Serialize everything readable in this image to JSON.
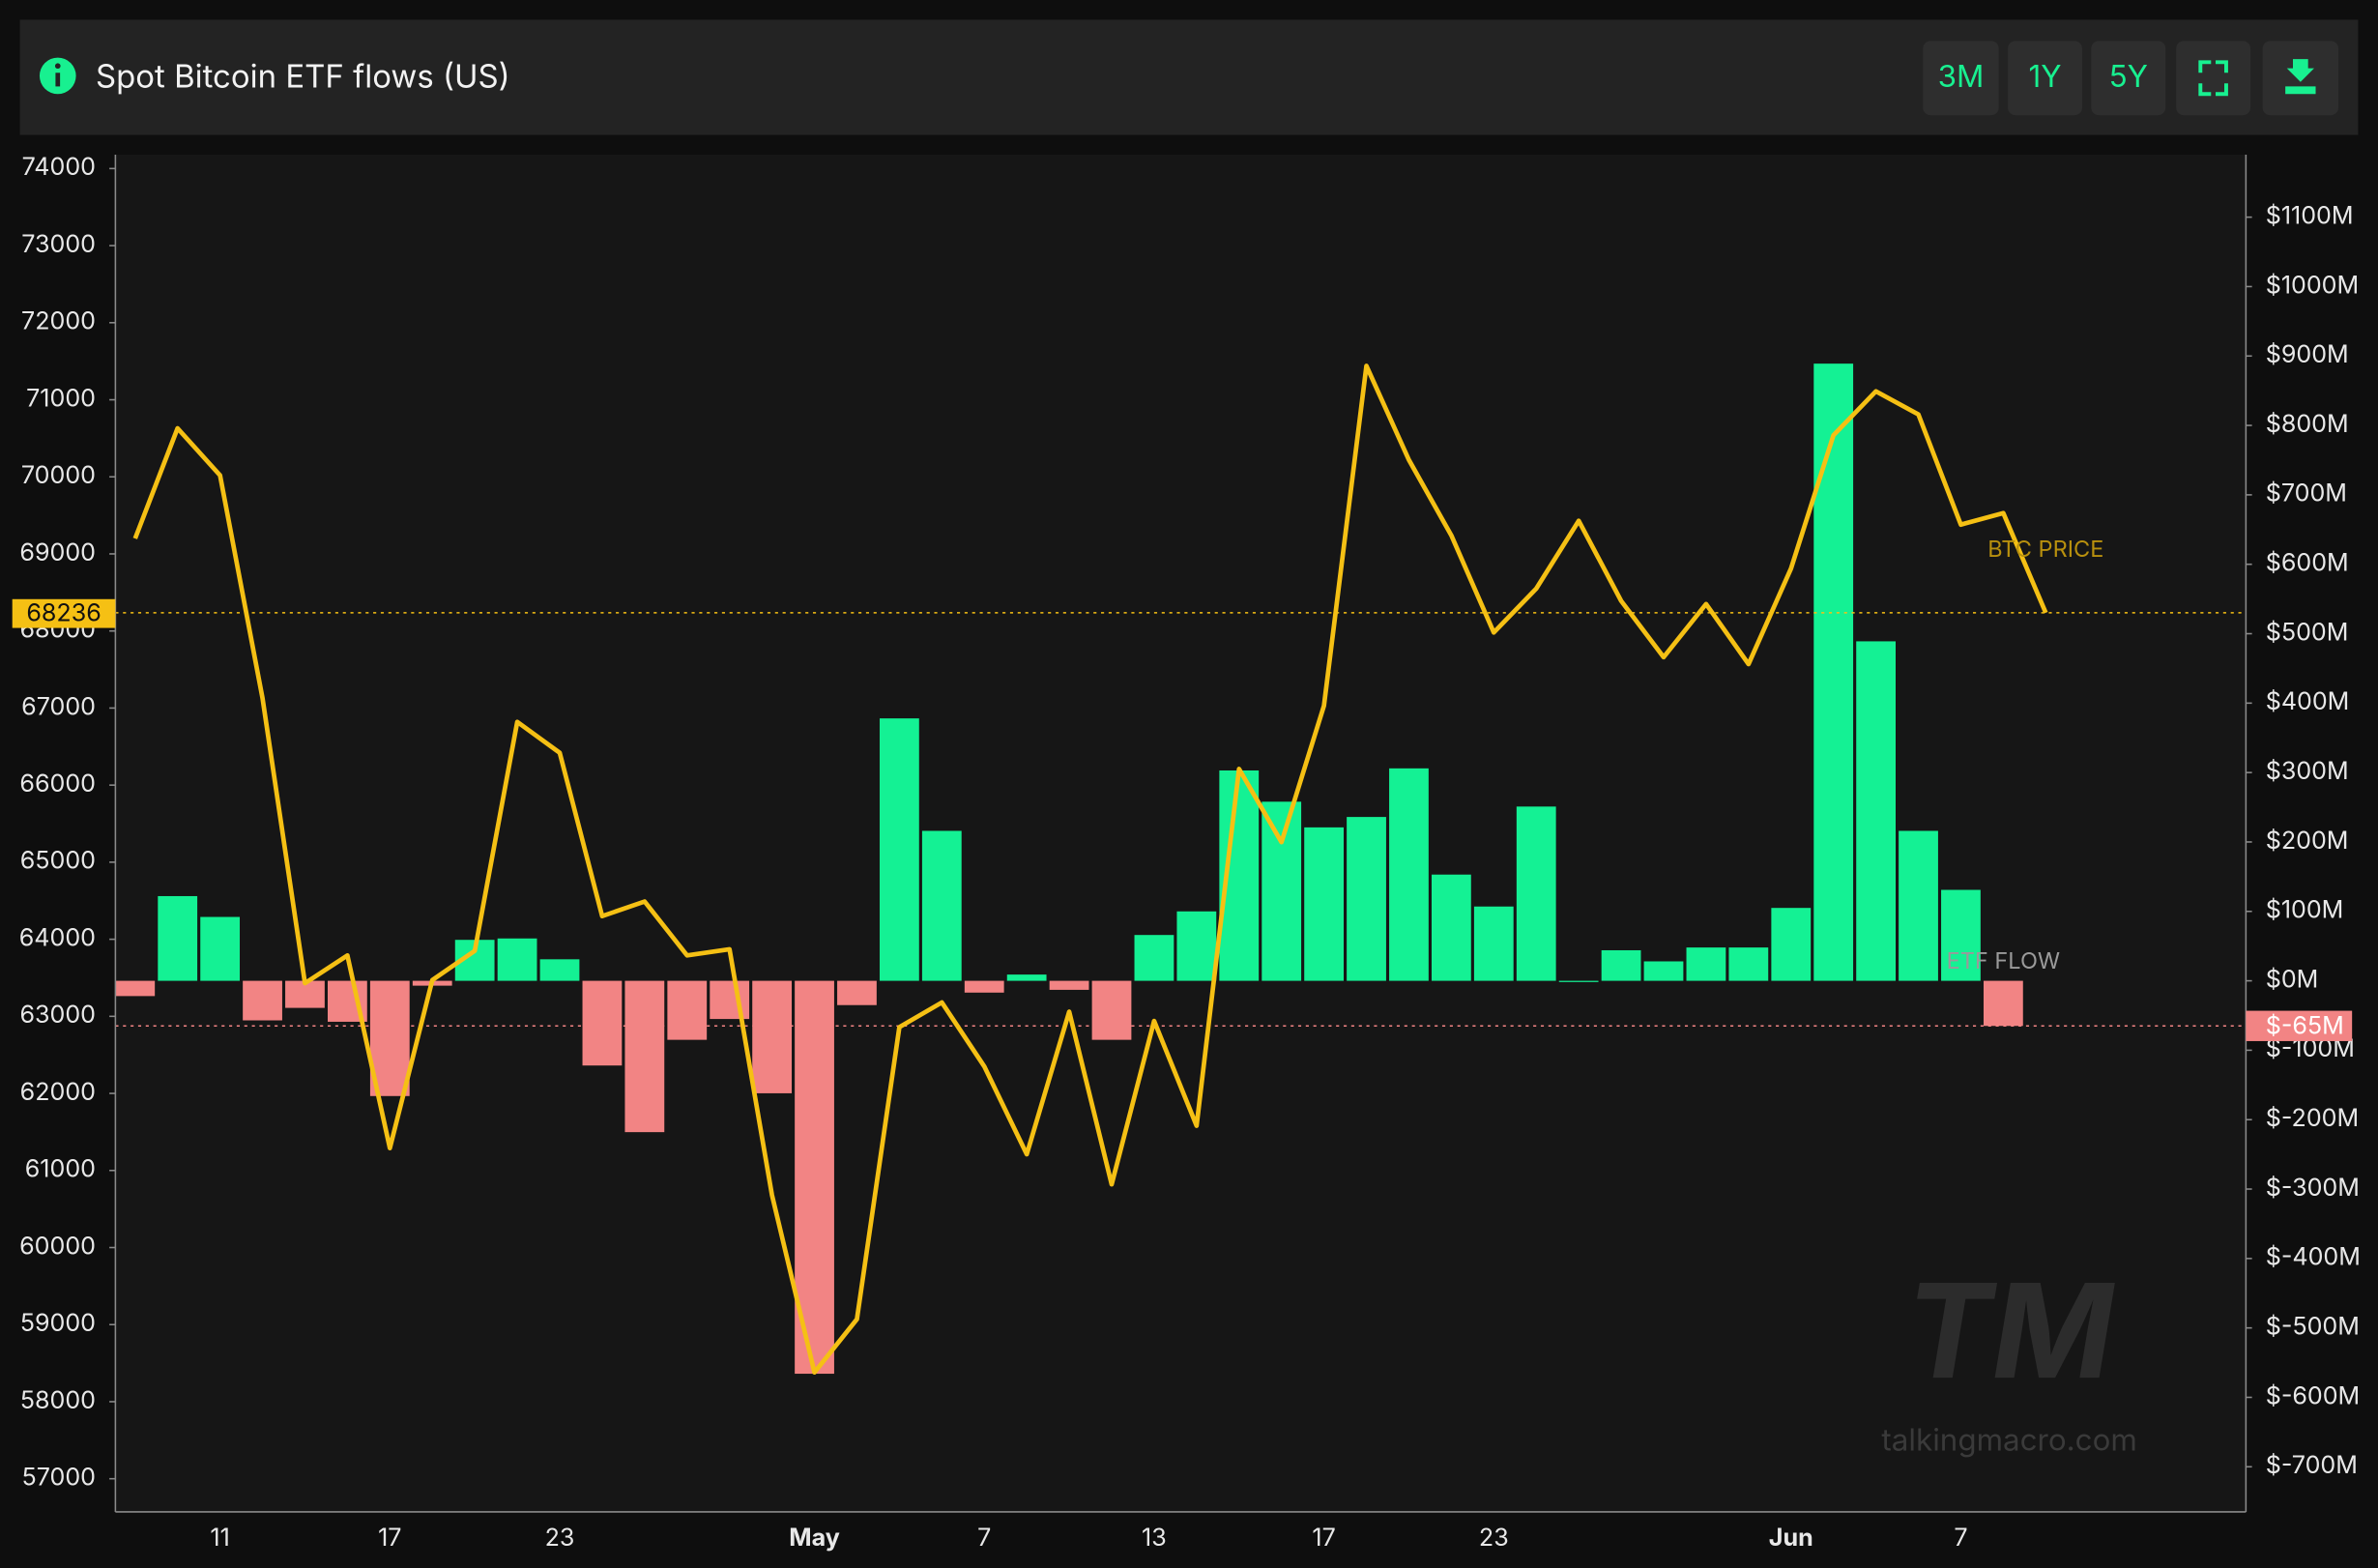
{
  "header": {
    "title": "Spot Bitcoin ETF flows (US)",
    "buttons": [
      "3M",
      "1Y",
      "5Y"
    ]
  },
  "watermark": {
    "logo": "TM",
    "site": "talkingmacro.com"
  },
  "chart_data": {
    "type": "combo",
    "categories": [
      null,
      null,
      "11",
      null,
      null,
      null,
      "17",
      null,
      null,
      null,
      "23",
      null,
      null,
      null,
      null,
      null,
      "May",
      null,
      null,
      null,
      "7",
      null,
      null,
      null,
      "13",
      null,
      null,
      null,
      "17",
      null,
      null,
      null,
      "23",
      null,
      null,
      null,
      null,
      null,
      null,
      "Jun",
      null,
      null,
      null,
      "7",
      null,
      null
    ],
    "series": [
      {
        "name": "BTC PRICE",
        "type": "line",
        "axis": "y",
        "color": "#f5c014",
        "values": [
          69200,
          70630,
          70020,
          67130,
          63430,
          63790,
          61290,
          63470,
          63850,
          66820,
          66420,
          64300,
          64490,
          63790,
          63870,
          60680,
          58380,
          59070,
          62860,
          63180,
          62350,
          61210,
          63060,
          60820,
          62940,
          61580,
          66210,
          65260,
          67030,
          71440,
          70220,
          69240,
          67980,
          68550,
          69430,
          68390,
          67660,
          68350,
          67570,
          68810,
          70540,
          71110,
          70810,
          69380,
          69530,
          68236
        ]
      },
      {
        "name": "ETF FLOW",
        "type": "bar",
        "axis": "y2",
        "color": "#14f194",
        "negative_color": "#f28484",
        "values": [
          -22,
          122,
          92,
          -57,
          -39,
          -59,
          -166,
          -7,
          59,
          61,
          31,
          -122,
          -218,
          -85,
          -55,
          -162,
          -566,
          -35,
          378,
          216,
          -17,
          9,
          -13,
          -85,
          66,
          100,
          303,
          258,
          221,
          236,
          306,
          153,
          107,
          251,
          0,
          44,
          28,
          48,
          48,
          105,
          889,
          489,
          216,
          131,
          -65,
          null
        ],
        "value_labels": [
          null,
          null,
          null,
          null,
          null,
          null,
          null,
          null,
          null,
          null,
          null,
          null,
          null,
          null,
          null,
          null,
          null,
          null,
          null,
          null,
          null,
          null,
          null,
          null,
          null,
          null,
          null,
          null,
          null,
          null,
          null,
          null,
          null,
          null,
          null,
          null,
          null,
          null,
          null,
          null,
          null,
          null,
          null,
          null,
          "$-65M",
          null
        ]
      }
    ],
    "ylim": [
      56570,
      74180
    ],
    "yticks": [
      57000,
      58000,
      59000,
      60000,
      61000,
      62000,
      63000,
      64000,
      65000,
      66000,
      67000,
      68000,
      69000,
      70000,
      71000,
      72000,
      73000,
      74000
    ],
    "y2lim": [
      -765,
      1190
    ],
    "y2ticks": [
      {
        "value": -700,
        "label": "$-700M"
      },
      {
        "value": -600,
        "label": "$-600M"
      },
      {
        "value": -500,
        "label": "$-500M"
      },
      {
        "value": -400,
        "label": "$-400M"
      },
      {
        "value": -300,
        "label": "$-300M"
      },
      {
        "value": -200,
        "label": "$-200M"
      },
      {
        "value": -100,
        "label": "$-100M"
      },
      {
        "value": 0,
        "label": "$0M"
      },
      {
        "value": 100,
        "label": "$100M"
      },
      {
        "value": 200,
        "label": "$200M"
      },
      {
        "value": 300,
        "label": "$300M"
      },
      {
        "value": 400,
        "label": "$400M"
      },
      {
        "value": 500,
        "label": "$500M"
      },
      {
        "value": 600,
        "label": "$600M"
      },
      {
        "value": 700,
        "label": "$700M"
      },
      {
        "value": 800,
        "label": "$800M"
      },
      {
        "value": 900,
        "label": "$900M"
      },
      {
        "value": 1000,
        "label": "$1000M"
      },
      {
        "value": 1100,
        "label": "$1100M"
      }
    ],
    "grid": false
  }
}
